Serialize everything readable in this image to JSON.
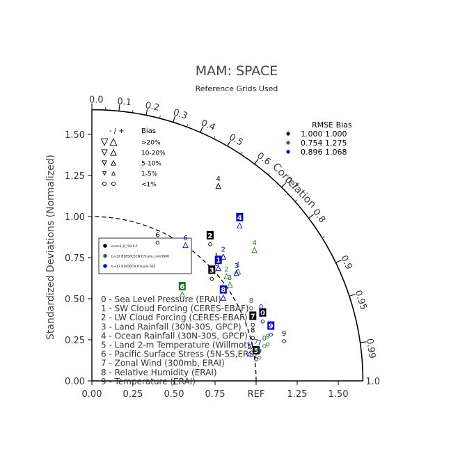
{
  "chart_data": {
    "type": "scatter",
    "title": "MAM: SPACE",
    "subtitle": "Reference Grids Used",
    "ylabel": "Standardized Deviations (Normalized)",
    "xlabel": "",
    "arc_label": "Correlation",
    "ref_label": "REF",
    "x_ticks": [
      "0.00",
      "0.25",
      "0.50",
      "0.75",
      "1.25",
      "1.50"
    ],
    "x_tick_values": [
      0,
      0.25,
      0.5,
      0.75,
      1.25,
      1.5
    ],
    "y_ticks": [
      "0.00",
      "0.25",
      "0.50",
      "0.75",
      "1.00",
      "1.25",
      "1.50"
    ],
    "y_tick_values": [
      0,
      0.25,
      0.5,
      0.75,
      1.0,
      1.25,
      1.5
    ],
    "outer_label": "1.0",
    "xlim": [
      0,
      1.65
    ],
    "ylim": [
      0,
      1.65
    ],
    "correlation_ticks": [
      {
        "label": "0.0",
        "r": 0.0
      },
      {
        "label": "0.1",
        "r": 0.1
      },
      {
        "label": "0.2",
        "r": 0.2
      },
      {
        "label": "0.3",
        "r": 0.3
      },
      {
        "label": "0.4",
        "r": 0.4
      },
      {
        "label": "0.5",
        "r": 0.5
      },
      {
        "label": "0.6",
        "r": 0.6
      },
      {
        "label": "0.7",
        "r": 0.7
      },
      {
        "label": "0.8",
        "r": 0.8
      },
      {
        "label": "0.9",
        "r": 0.9
      },
      {
        "label": "0.95",
        "r": 0.95
      },
      {
        "label": "0.99",
        "r": 0.99
      }
    ],
    "variables": [
      "0 - Sea Level Pressure (ERAI)",
      "1 - SW Cloud Forcing (CERES-EBAF)",
      "2 - LW Cloud Forcing (CERES-EBAF)",
      "3 - Land Rainfall (30N-30S, GPCP)",
      "4 - Ocean Rainfall (30N-30S, GPCP)",
      "5 - Land 2-m Temperature (Willmott)",
      "6 - Pacific Surface Stress (5N-5S,ERS)",
      "7 - Zonal Wind (300mb, ERAI)",
      "8 - Relative Humidity (ERAI)",
      "9 - Temperature (ERAI)"
    ],
    "bias_legend": {
      "header_left": "- / +",
      "header_right": "Bias",
      "rows": [
        {
          "label": ">20%",
          "symbol": "triangle",
          "size": 4.8
        },
        {
          "label": "10-20%",
          "symbol": "triangle",
          "size": 4
        },
        {
          "label": "5-10%",
          "symbol": "triangle",
          "size": 3.2
        },
        {
          "label": "1-5%",
          "symbol": "triangle",
          "size": 2.4
        },
        {
          "label": "<1%",
          "symbol": "circle",
          "size": 2.6
        }
      ]
    },
    "rmse_table": {
      "header": "RMSE  Bias",
      "rows": [
        {
          "color": "#000000",
          "text": "1.000 1.000"
        },
        {
          "color": "#1a7a1a",
          "text": "0.754 1.275"
        },
        {
          "color": "#0000ee",
          "text": "0.896 1.068"
        }
      ]
    },
    "cases_legend": [
      {
        "name": "ccsm3_0_f19.0.5",
        "color": "#000000"
      },
      {
        "name": "b.e12.B1850C5CN.f19.pilo_com3000",
        "color": "#1a7a1a"
      },
      {
        "name": "b.e12.B1850CN.f19.pilo.002",
        "color": "#0000ee"
      }
    ],
    "series": [
      {
        "color": "#000000",
        "points": [
          {
            "label": "0",
            "x": 1.04,
            "y": 0.37,
            "box": true
          },
          {
            "label": "1",
            "x": 0.76,
            "y": 0.72,
            "box": false
          },
          {
            "label": "2",
            "x": 0.72,
            "y": 0.84,
            "box": true
          },
          {
            "label": "3",
            "x": 0.73,
            "y": 0.63,
            "box": true
          },
          {
            "label": "4",
            "x": 0.77,
            "y": 1.19,
            "box": false
          },
          {
            "label": "5",
            "x": 1.0,
            "y": 0.14,
            "box": true
          },
          {
            "label": "6",
            "x": 0.4,
            "y": 0.85,
            "box": false
          },
          {
            "label": "7",
            "x": 0.98,
            "y": 0.35,
            "box": true
          },
          {
            "label": "8",
            "x": 0.98,
            "y": 0.27,
            "box": false
          },
          {
            "label": "9",
            "x": 1.17,
            "y": 0.25,
            "box": false
          }
        ]
      },
      {
        "color": "#1a7a1a",
        "points": [
          {
            "label": "0",
            "x": 1.05,
            "y": 0.22,
            "box": false
          },
          {
            "label": "1",
            "x": 0.89,
            "y": 0.67,
            "box": false
          },
          {
            "label": "2",
            "x": 0.82,
            "y": 0.64,
            "box": false
          },
          {
            "label": "3",
            "x": 0.84,
            "y": 0.59,
            "box": false
          },
          {
            "label": "4",
            "x": 0.99,
            "y": 0.8,
            "box": false
          },
          {
            "label": "5",
            "x": 1.02,
            "y": 0.15,
            "box": false
          },
          {
            "label": "6",
            "x": 0.55,
            "y": 0.53,
            "box": true
          },
          {
            "label": "7",
            "x": 1.0,
            "y": 0.2,
            "box": false
          },
          {
            "label": "8",
            "x": 0.97,
            "y": 0.45,
            "box": false
          },
          {
            "label": "9",
            "x": 1.07,
            "y": 0.23,
            "box": false
          }
        ]
      },
      {
        "color": "#0000ee",
        "points": [
          {
            "label": "0",
            "x": 1.03,
            "y": 0.41,
            "box": false
          },
          {
            "label": "1",
            "x": 0.77,
            "y": 0.69,
            "box": true
          },
          {
            "label": "2",
            "x": 0.8,
            "y": 0.76,
            "box": false
          },
          {
            "label": "3",
            "x": 0.88,
            "y": 0.66,
            "box": false
          },
          {
            "label": "4",
            "x": 0.9,
            "y": 0.95,
            "box": true
          },
          {
            "label": "5",
            "x": 0.96,
            "y": 0.17,
            "box": false
          },
          {
            "label": "6",
            "x": 0.57,
            "y": 0.83,
            "box": false
          },
          {
            "label": "7",
            "x": 1.02,
            "y": 0.19,
            "box": false
          },
          {
            "label": "8",
            "x": 0.8,
            "y": 0.51,
            "box": true
          },
          {
            "label": "9",
            "x": 1.09,
            "y": 0.29,
            "box": true
          }
        ]
      }
    ]
  }
}
